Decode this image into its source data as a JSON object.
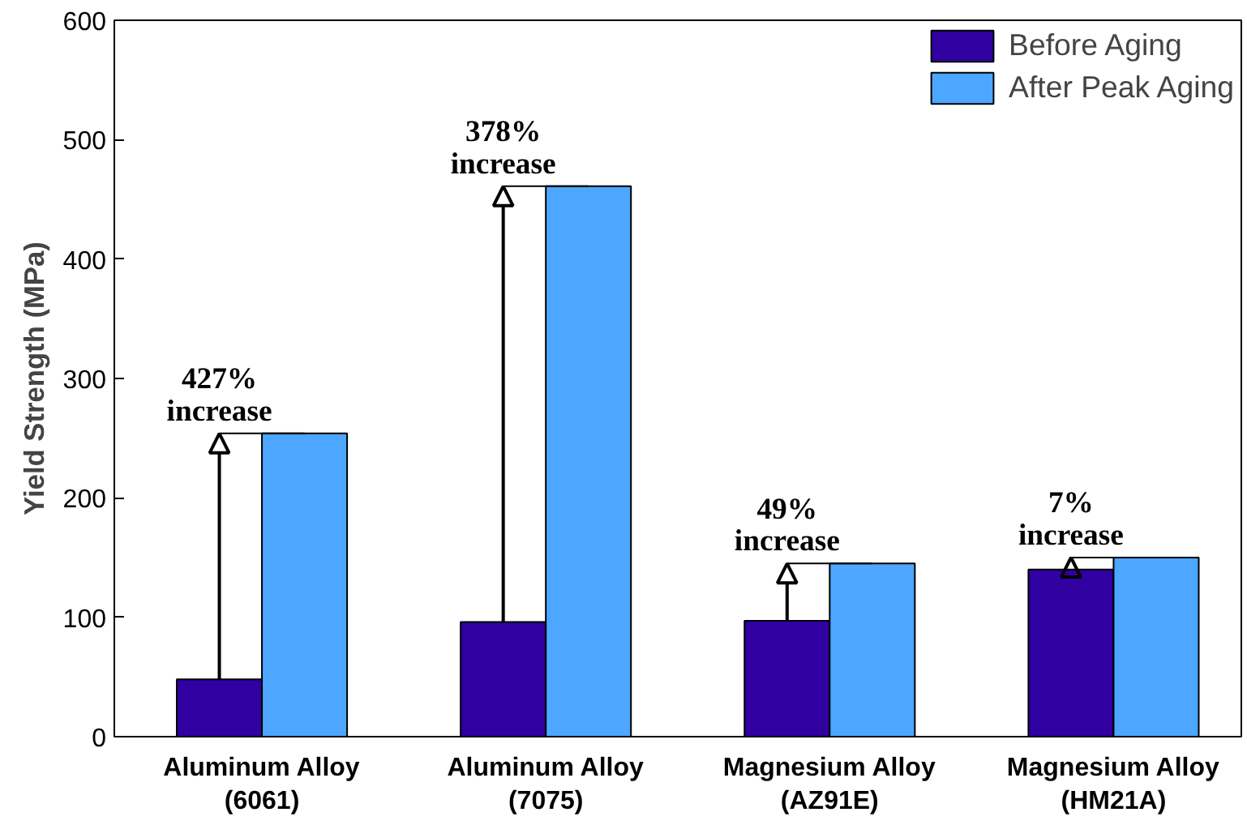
{
  "chart_data": {
    "type": "bar",
    "ylabel": "Yield Strength (MPa)",
    "categories": [
      "Aluminum Alloy\n(6061)",
      "Aluminum Alloy\n(7075)",
      "Magnesium Alloy\n(AZ91E)",
      "Magnesium Alloy\n(HM21A)"
    ],
    "series": [
      {
        "name": "Before Aging",
        "color": "#3000a0",
        "values": [
          48,
          96,
          97,
          140
        ]
      },
      {
        "name": "After Peak Aging",
        "color": "#4da6ff",
        "values": [
          254,
          461,
          145,
          150
        ]
      }
    ],
    "ylim": [
      0,
      600
    ],
    "yticks": [
      0,
      100,
      200,
      300,
      400,
      500,
      600
    ],
    "annotations": [
      {
        "text": "427%\nincrease",
        "x": "Aluminum Alloy\n(6061)",
        "y": 254
      },
      {
        "text": "378%\nincrease",
        "x": "Aluminum Alloy\n(7075)",
        "y": 461
      },
      {
        "text": "49%\nincrease",
        "x": "Magnesium Alloy\n(AZ91E)",
        "y": 145
      },
      {
        "text": "7%\nincrease",
        "x": "Magnesium Alloy\n(HM21A)",
        "y": 150
      }
    ],
    "legend": "top right",
    "grid": false
  }
}
